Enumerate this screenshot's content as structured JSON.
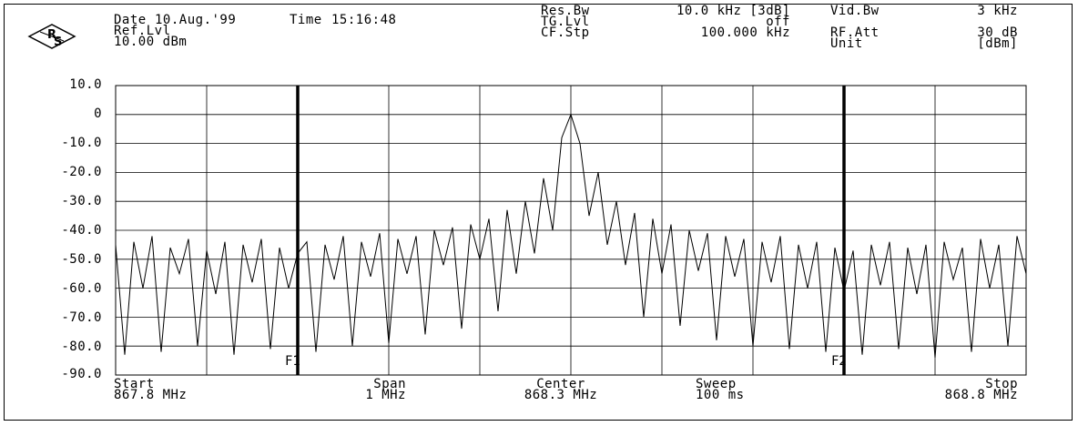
{
  "header": {
    "date_label": "Date",
    "date_value": "10.Aug.'99",
    "time_label": "Time",
    "time_value": "15:16:48",
    "ref_lvl_label": "Ref.Lvl",
    "ref_lvl_value": "10.00 dBm",
    "res_bw_label": "Res.Bw",
    "res_bw_value": "10.0 kHz [3dB]",
    "tg_lvl_label": "TG.Lvl",
    "tg_lvl_value": "off",
    "cf_stp_label": "CF.Stp",
    "cf_stp_value": "100.000 kHz",
    "vid_bw_label": "Vid.Bw",
    "vid_bw_value": "3 kHz",
    "rf_att_label": "RF.Att",
    "rf_att_value": "30 dB",
    "unit_label": "Unit",
    "unit_value": "[dBm]"
  },
  "footer": {
    "start_label": "Start",
    "start_value": "867.8 MHz",
    "span_label": "Span",
    "span_value": "1 MHz",
    "center_label": "Center",
    "center_value": "868.3 MHz",
    "sweep_label": "Sweep",
    "sweep_value": "100 ms",
    "stop_label": "Stop",
    "stop_value": "868.8 MHz"
  },
  "chart_data": {
    "type": "line",
    "title": "",
    "xlabel": "",
    "ylabel": "",
    "xlim": [
      867.8,
      868.8
    ],
    "ylim": [
      -90,
      10
    ],
    "y_ticks": [
      "10.0",
      "0",
      "-10.0",
      "-20.0",
      "-30.0",
      "-40.0",
      "-50.0",
      "-60.0",
      "-70.0",
      "-80.0",
      "-90.0"
    ],
    "grid": true,
    "markers": [
      {
        "label": "F1",
        "x": 868.0
      },
      {
        "label": "F2",
        "x": 868.6
      }
    ],
    "series": [
      {
        "x": [
          867.8,
          867.81,
          867.82,
          867.83,
          867.84,
          867.85,
          867.86,
          867.87,
          867.88,
          867.89,
          867.9,
          867.91,
          867.92,
          867.93,
          867.94,
          867.95,
          867.96,
          867.97,
          867.98,
          867.99,
          868.0,
          868.01,
          868.02,
          868.03,
          868.04,
          868.05,
          868.06,
          868.07,
          868.08,
          868.09,
          868.1,
          868.11,
          868.12,
          868.13,
          868.14,
          868.15,
          868.16,
          868.17,
          868.18,
          868.19,
          868.2,
          868.21,
          868.22,
          868.23,
          868.24,
          868.25,
          868.26,
          868.27,
          868.28,
          868.29,
          868.3,
          868.31,
          868.32,
          868.33,
          868.34,
          868.35,
          868.36,
          868.37,
          868.38,
          868.39,
          868.4,
          868.41,
          868.42,
          868.43,
          868.44,
          868.45,
          868.46,
          868.47,
          868.48,
          868.49,
          868.5,
          868.51,
          868.52,
          868.53,
          868.54,
          868.55,
          868.56,
          868.57,
          868.58,
          868.59,
          868.6,
          868.61,
          868.62,
          868.63,
          868.64,
          868.65,
          868.66,
          868.67,
          868.68,
          868.69,
          868.7,
          868.71,
          868.72,
          868.73,
          868.74,
          868.75,
          868.76,
          868.77,
          868.78,
          868.79,
          868.8
        ],
        "values": [
          -45,
          -83,
          -44,
          -60,
          -42,
          -82,
          -46,
          -55,
          -43,
          -80,
          -47,
          -62,
          -44,
          -83,
          -45,
          -58,
          -43,
          -81,
          -46,
          -60,
          -48,
          -44,
          -82,
          -45,
          -57,
          -42,
          -80,
          -44,
          -56,
          -41,
          -79,
          -43,
          -55,
          -42,
          -76,
          -40,
          -52,
          -39,
          -74,
          -38,
          -50,
          -36,
          -68,
          -33,
          -55,
          -30,
          -48,
          -22,
          -40,
          -8,
          0,
          -10,
          -35,
          -20,
          -45,
          -30,
          -52,
          -34,
          -70,
          -36,
          -55,
          -38,
          -73,
          -40,
          -54,
          -41,
          -78,
          -42,
          -56,
          -43,
          -80,
          -44,
          -58,
          -42,
          -81,
          -45,
          -60,
          -44,
          -82,
          -46,
          -61,
          -47,
          -83,
          -45,
          -59,
          -44,
          -81,
          -46,
          -62,
          -45,
          -84,
          -44,
          -57,
          -46,
          -82,
          -43,
          -60,
          -45,
          -80,
          -42,
          -55
        ]
      }
    ]
  }
}
